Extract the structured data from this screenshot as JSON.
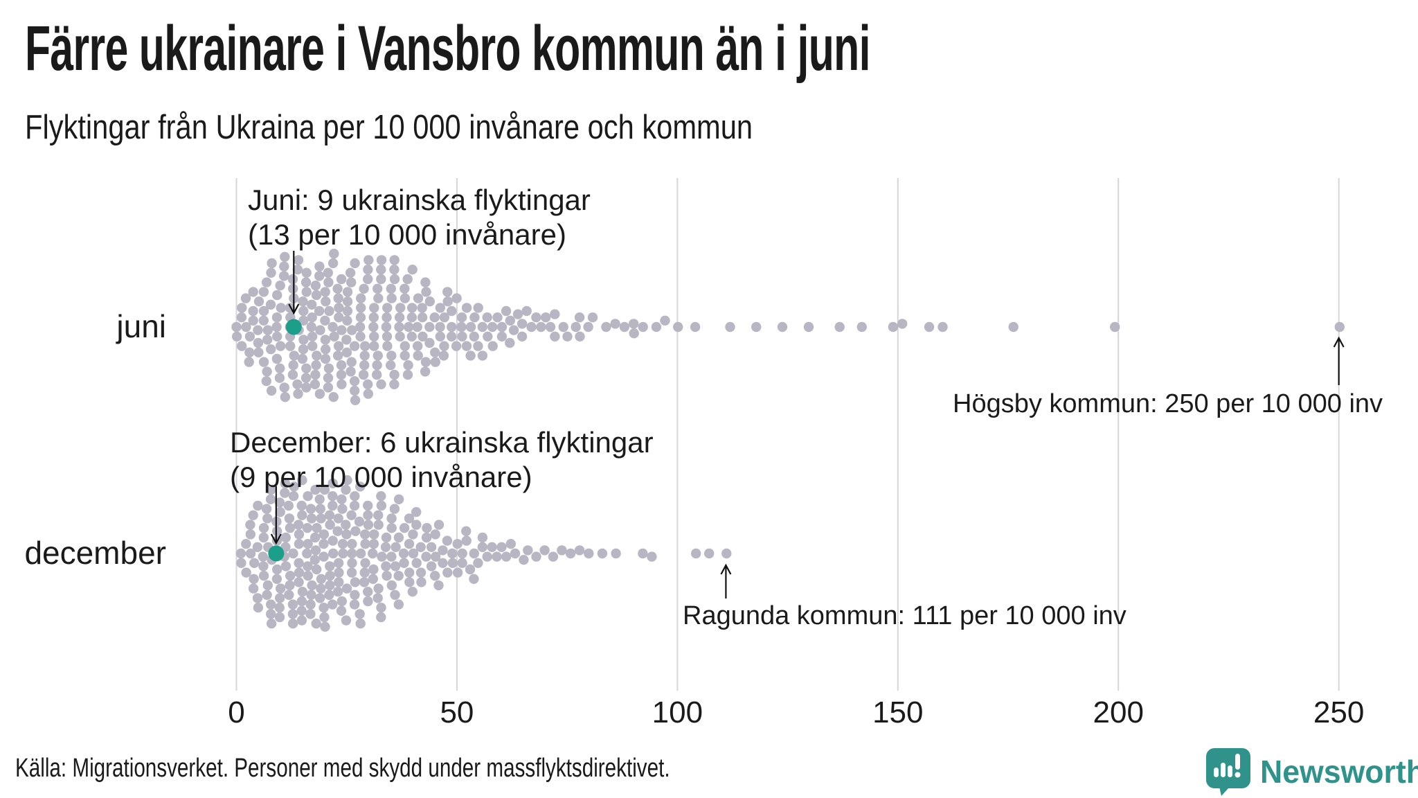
{
  "header": {
    "title": "Färre ukrainare i Vansbro kommun än i juni",
    "subtitle": "Flyktingar från Ukraina per 10 000 invånare och kommun"
  },
  "chart_data": {
    "type": "beeswarm",
    "title": "Färre ukrainare i Vansbro kommun än i juni",
    "subtitle": "Flyktingar från Ukraina per 10 000 invånare och kommun",
    "unit": "flyktingar per 10 000 invånare",
    "x_range": [
      0,
      255
    ],
    "x_ticks": [
      0,
      50,
      100,
      150,
      200,
      250
    ],
    "grid": true,
    "rows": [
      {
        "label": "juni",
        "highlight": {
          "refugees": 9,
          "per_10000": 13
        },
        "max_point": {
          "municipality": "Högsby kommun",
          "per_10000": 250
        },
        "value_counts": [
          [
            0,
            2
          ],
          [
            1,
            3
          ],
          [
            2,
            2
          ],
          [
            3,
            3
          ],
          [
            4,
            3
          ],
          [
            5,
            4
          ],
          [
            6,
            4
          ],
          [
            7,
            5
          ],
          [
            8,
            5
          ],
          [
            9,
            5
          ],
          [
            10,
            5
          ],
          [
            11,
            5
          ],
          [
            12,
            5
          ],
          [
            13,
            6
          ],
          [
            14,
            5
          ],
          [
            15,
            6
          ],
          [
            16,
            6
          ],
          [
            17,
            5
          ],
          [
            18,
            6
          ],
          [
            19,
            5
          ],
          [
            20,
            6
          ],
          [
            21,
            6
          ],
          [
            22,
            5
          ],
          [
            23,
            6
          ],
          [
            24,
            5
          ],
          [
            25,
            6
          ],
          [
            26,
            5
          ],
          [
            27,
            5
          ],
          [
            28,
            5
          ],
          [
            29,
            5
          ],
          [
            30,
            5
          ],
          [
            31,
            5
          ],
          [
            32,
            5
          ],
          [
            33,
            4
          ],
          [
            34,
            5
          ],
          [
            35,
            4
          ],
          [
            36,
            5
          ],
          [
            37,
            4
          ],
          [
            38,
            4
          ],
          [
            39,
            4
          ],
          [
            40,
            4
          ],
          [
            41,
            4
          ],
          [
            42,
            3
          ],
          [
            43,
            4
          ],
          [
            44,
            3
          ],
          [
            45,
            3
          ],
          [
            46,
            3
          ],
          [
            47,
            3
          ],
          [
            48,
            2
          ],
          [
            49,
            3
          ],
          [
            50,
            2
          ],
          [
            51,
            3
          ],
          [
            52,
            2
          ],
          [
            53,
            2
          ],
          [
            54,
            2
          ],
          [
            55,
            2
          ],
          [
            56,
            2
          ],
          [
            57,
            2
          ],
          [
            58,
            2
          ],
          [
            59,
            1
          ],
          [
            60,
            2
          ],
          [
            61,
            1
          ],
          [
            62,
            2
          ],
          [
            63,
            1
          ],
          [
            64,
            1
          ],
          [
            65,
            2
          ],
          [
            66,
            1
          ],
          [
            67,
            1
          ],
          [
            68,
            1
          ],
          [
            69,
            1
          ],
          [
            70,
            1
          ],
          [
            71,
            1
          ],
          [
            72,
            2
          ],
          [
            74,
            1
          ],
          [
            75,
            1
          ],
          [
            77,
            1
          ],
          [
            78,
            2
          ],
          [
            80,
            1
          ],
          [
            81,
            1
          ],
          [
            84,
            1
          ],
          [
            86,
            1
          ],
          [
            88,
            1
          ],
          [
            90,
            2
          ],
          [
            92,
            1
          ],
          [
            95,
            1
          ],
          [
            97,
            1
          ],
          [
            100,
            1
          ],
          [
            104,
            1
          ],
          [
            112,
            1
          ],
          [
            118,
            1
          ],
          [
            124,
            1
          ],
          [
            130,
            1
          ],
          [
            137,
            1
          ],
          [
            142,
            1
          ],
          [
            149,
            1
          ],
          [
            151,
            1
          ],
          [
            157,
            1
          ],
          [
            160,
            1
          ],
          [
            176,
            1
          ],
          [
            199,
            1
          ],
          [
            250,
            1
          ]
        ]
      },
      {
        "label": "december",
        "highlight": {
          "refugees": 6,
          "per_10000": 9
        },
        "max_point": {
          "municipality": "Ragunda kommun",
          "per_10000": 111
        },
        "value_counts": [
          [
            1,
            2
          ],
          [
            2,
            2
          ],
          [
            3,
            3
          ],
          [
            4,
            4
          ],
          [
            5,
            4
          ],
          [
            6,
            5
          ],
          [
            7,
            5
          ],
          [
            8,
            6
          ],
          [
            9,
            6
          ],
          [
            10,
            6
          ],
          [
            11,
            6
          ],
          [
            12,
            6
          ],
          [
            13,
            6
          ],
          [
            14,
            6
          ],
          [
            15,
            7
          ],
          [
            16,
            6
          ],
          [
            17,
            6
          ],
          [
            18,
            7
          ],
          [
            19,
            6
          ],
          [
            20,
            7
          ],
          [
            21,
            6
          ],
          [
            22,
            6
          ],
          [
            23,
            6
          ],
          [
            24,
            6
          ],
          [
            25,
            6
          ],
          [
            26,
            5
          ],
          [
            27,
            6
          ],
          [
            28,
            5
          ],
          [
            29,
            5
          ],
          [
            30,
            5
          ],
          [
            31,
            5
          ],
          [
            32,
            4
          ],
          [
            33,
            5
          ],
          [
            34,
            4
          ],
          [
            35,
            4
          ],
          [
            36,
            4
          ],
          [
            37,
            4
          ],
          [
            38,
            3
          ],
          [
            39,
            4
          ],
          [
            40,
            3
          ],
          [
            41,
            3
          ],
          [
            42,
            3
          ],
          [
            43,
            3
          ],
          [
            44,
            2
          ],
          [
            45,
            3
          ],
          [
            46,
            2
          ],
          [
            47,
            2
          ],
          [
            48,
            2
          ],
          [
            49,
            2
          ],
          [
            50,
            2
          ],
          [
            51,
            2
          ],
          [
            52,
            2
          ],
          [
            53,
            1
          ],
          [
            54,
            2
          ],
          [
            55,
            1
          ],
          [
            56,
            2
          ],
          [
            57,
            1
          ],
          [
            58,
            1
          ],
          [
            59,
            1
          ],
          [
            60,
            1
          ],
          [
            61,
            1
          ],
          [
            62,
            1
          ],
          [
            63,
            1
          ],
          [
            65,
            1
          ],
          [
            66,
            1
          ],
          [
            68,
            1
          ],
          [
            70,
            1
          ],
          [
            72,
            1
          ],
          [
            74,
            1
          ],
          [
            76,
            1
          ],
          [
            78,
            1
          ],
          [
            80,
            1
          ],
          [
            83,
            1
          ],
          [
            86,
            1
          ],
          [
            92,
            1
          ],
          [
            94,
            1
          ],
          [
            104,
            1
          ],
          [
            107,
            1
          ],
          [
            111,
            1
          ]
        ]
      }
    ]
  },
  "annotations": {
    "juni_note": {
      "line1": "Juni: 9 ukrainska flyktingar",
      "line2": "(13 per 10 000 invånare)"
    },
    "december_note": {
      "line1": "December: 6 ukrainska flyktingar",
      "line2": "(9 per 10 000 invånare)"
    },
    "hogsby_note": {
      "text": "Högsby kommun: 250 per 10 000 inv"
    },
    "ragunda_note": {
      "text": "Ragunda kommun: 111 per 10 000 inv"
    }
  },
  "footer": {
    "source": "Källa: Migrationsverket. Personer med skydd under massflyktsdirektivet."
  },
  "logo": {
    "text": "Newsworthy"
  },
  "colors": {
    "dot": "#b9b6c4",
    "highlight": "#1b9e8a",
    "gridline": "#d7d5da",
    "text": "#1a1a1a",
    "arrow": "#111111",
    "logo": "#2f938c"
  }
}
